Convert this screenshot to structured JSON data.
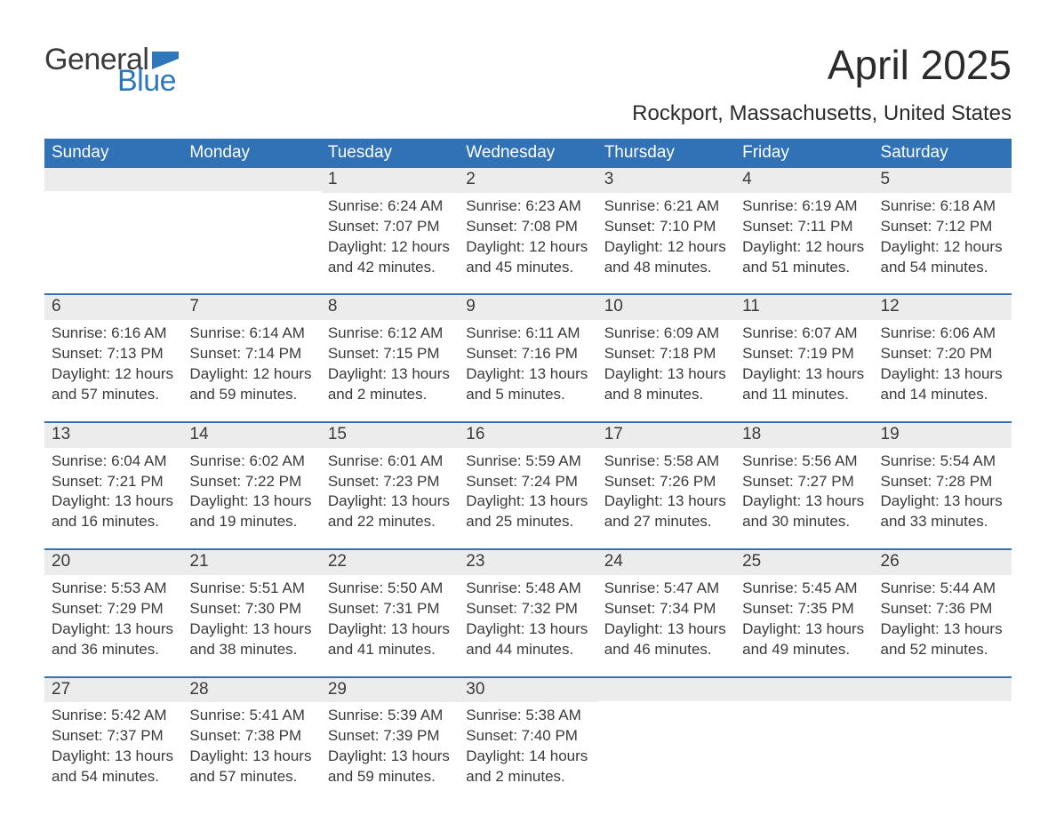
{
  "brand": {
    "text_general": "General",
    "text_blue": "Blue",
    "accent_color": "#2f77bb",
    "text_color": "#3a3a3a"
  },
  "title": "April 2025",
  "location": "Rockport, Massachusetts, United States",
  "colors": {
    "header_bg": "#3072b5",
    "header_text": "#ffffff",
    "daynum_bg": "#ececec",
    "week_border": "#3072b5",
    "body_text": "#3a3a3a",
    "page_bg": "#ffffff"
  },
  "typography": {
    "title_fontsize": 46,
    "location_fontsize": 24,
    "dow_fontsize": 19,
    "daynum_fontsize": 19,
    "body_fontsize": 17
  },
  "type": "calendar-table",
  "day_names": [
    "Sunday",
    "Monday",
    "Tuesday",
    "Wednesday",
    "Thursday",
    "Friday",
    "Saturday"
  ],
  "labels": {
    "sunrise": "Sunrise:",
    "sunset": "Sunset:",
    "daylight": "Daylight:"
  },
  "weeks": [
    [
      {
        "day": "",
        "sunrise": "",
        "sunset": "",
        "daylight": ""
      },
      {
        "day": "",
        "sunrise": "",
        "sunset": "",
        "daylight": ""
      },
      {
        "day": "1",
        "sunrise": "6:24 AM",
        "sunset": "7:07 PM",
        "daylight": "12 hours and 42 minutes."
      },
      {
        "day": "2",
        "sunrise": "6:23 AM",
        "sunset": "7:08 PM",
        "daylight": "12 hours and 45 minutes."
      },
      {
        "day": "3",
        "sunrise": "6:21 AM",
        "sunset": "7:10 PM",
        "daylight": "12 hours and 48 minutes."
      },
      {
        "day": "4",
        "sunrise": "6:19 AM",
        "sunset": "7:11 PM",
        "daylight": "12 hours and 51 minutes."
      },
      {
        "day": "5",
        "sunrise": "6:18 AM",
        "sunset": "7:12 PM",
        "daylight": "12 hours and 54 minutes."
      }
    ],
    [
      {
        "day": "6",
        "sunrise": "6:16 AM",
        "sunset": "7:13 PM",
        "daylight": "12 hours and 57 minutes."
      },
      {
        "day": "7",
        "sunrise": "6:14 AM",
        "sunset": "7:14 PM",
        "daylight": "12 hours and 59 minutes."
      },
      {
        "day": "8",
        "sunrise": "6:12 AM",
        "sunset": "7:15 PM",
        "daylight": "13 hours and 2 minutes."
      },
      {
        "day": "9",
        "sunrise": "6:11 AM",
        "sunset": "7:16 PM",
        "daylight": "13 hours and 5 minutes."
      },
      {
        "day": "10",
        "sunrise": "6:09 AM",
        "sunset": "7:18 PM",
        "daylight": "13 hours and 8 minutes."
      },
      {
        "day": "11",
        "sunrise": "6:07 AM",
        "sunset": "7:19 PM",
        "daylight": "13 hours and 11 minutes."
      },
      {
        "day": "12",
        "sunrise": "6:06 AM",
        "sunset": "7:20 PM",
        "daylight": "13 hours and 14 minutes."
      }
    ],
    [
      {
        "day": "13",
        "sunrise": "6:04 AM",
        "sunset": "7:21 PM",
        "daylight": "13 hours and 16 minutes."
      },
      {
        "day": "14",
        "sunrise": "6:02 AM",
        "sunset": "7:22 PM",
        "daylight": "13 hours and 19 minutes."
      },
      {
        "day": "15",
        "sunrise": "6:01 AM",
        "sunset": "7:23 PM",
        "daylight": "13 hours and 22 minutes."
      },
      {
        "day": "16",
        "sunrise": "5:59 AM",
        "sunset": "7:24 PM",
        "daylight": "13 hours and 25 minutes."
      },
      {
        "day": "17",
        "sunrise": "5:58 AM",
        "sunset": "7:26 PM",
        "daylight": "13 hours and 27 minutes."
      },
      {
        "day": "18",
        "sunrise": "5:56 AM",
        "sunset": "7:27 PM",
        "daylight": "13 hours and 30 minutes."
      },
      {
        "day": "19",
        "sunrise": "5:54 AM",
        "sunset": "7:28 PM",
        "daylight": "13 hours and 33 minutes."
      }
    ],
    [
      {
        "day": "20",
        "sunrise": "5:53 AM",
        "sunset": "7:29 PM",
        "daylight": "13 hours and 36 minutes."
      },
      {
        "day": "21",
        "sunrise": "5:51 AM",
        "sunset": "7:30 PM",
        "daylight": "13 hours and 38 minutes."
      },
      {
        "day": "22",
        "sunrise": "5:50 AM",
        "sunset": "7:31 PM",
        "daylight": "13 hours and 41 minutes."
      },
      {
        "day": "23",
        "sunrise": "5:48 AM",
        "sunset": "7:32 PM",
        "daylight": "13 hours and 44 minutes."
      },
      {
        "day": "24",
        "sunrise": "5:47 AM",
        "sunset": "7:34 PM",
        "daylight": "13 hours and 46 minutes."
      },
      {
        "day": "25",
        "sunrise": "5:45 AM",
        "sunset": "7:35 PM",
        "daylight": "13 hours and 49 minutes."
      },
      {
        "day": "26",
        "sunrise": "5:44 AM",
        "sunset": "7:36 PM",
        "daylight": "13 hours and 52 minutes."
      }
    ],
    [
      {
        "day": "27",
        "sunrise": "5:42 AM",
        "sunset": "7:37 PM",
        "daylight": "13 hours and 54 minutes."
      },
      {
        "day": "28",
        "sunrise": "5:41 AM",
        "sunset": "7:38 PM",
        "daylight": "13 hours and 57 minutes."
      },
      {
        "day": "29",
        "sunrise": "5:39 AM",
        "sunset": "7:39 PM",
        "daylight": "13 hours and 59 minutes."
      },
      {
        "day": "30",
        "sunrise": "5:38 AM",
        "sunset": "7:40 PM",
        "daylight": "14 hours and 2 minutes."
      },
      {
        "day": "",
        "sunrise": "",
        "sunset": "",
        "daylight": ""
      },
      {
        "day": "",
        "sunrise": "",
        "sunset": "",
        "daylight": ""
      },
      {
        "day": "",
        "sunrise": "",
        "sunset": "",
        "daylight": ""
      }
    ]
  ]
}
